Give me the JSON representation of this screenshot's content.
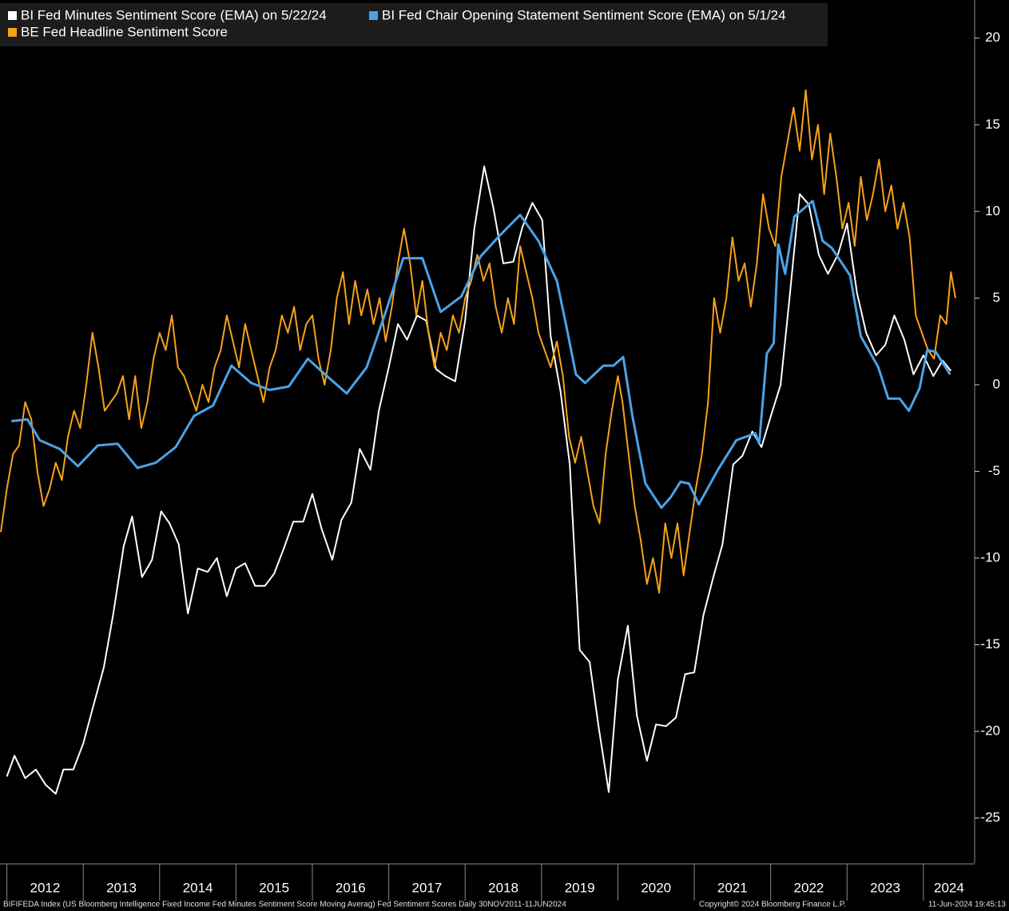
{
  "chart_data": {
    "type": "line",
    "source": "BIFIFEDA Index (US Bloomberg Intelligence Fixed Income Fed Minutes Sentiment Score Moving Averag) Fed Sentiment Scores  Daily 30NOV2011-11JUN2024",
    "copyright": "Copyright© 2024 Bloomberg Finance L.P.",
    "timestamp": "11-Jun-2024 19:45:13",
    "xlim": [
      2011.91,
      2024.65
    ],
    "xticks": [
      {
        "value": 2012,
        "label": "2012"
      },
      {
        "value": 2013,
        "label": "2013"
      },
      {
        "value": 2014,
        "label": "2014"
      },
      {
        "value": 2015,
        "label": "2015"
      },
      {
        "value": 2016,
        "label": "2016"
      },
      {
        "value": 2017,
        "label": "2017"
      },
      {
        "value": 2018,
        "label": "2018"
      },
      {
        "value": 2019,
        "label": "2019"
      },
      {
        "value": 2020,
        "label": "2020"
      },
      {
        "value": 2021,
        "label": "2021"
      },
      {
        "value": 2022,
        "label": "2022"
      },
      {
        "value": 2023,
        "label": "2023"
      },
      {
        "value": 2024,
        "label": "2024"
      }
    ],
    "ylim": [
      -27.6,
      22.2
    ],
    "yticks": [
      20,
      15,
      10,
      5,
      0,
      -5,
      -10,
      -15,
      -20,
      -25
    ],
    "legend": "top-left",
    "series": [
      {
        "name": "BI Fed Minutes Sentiment Score (EMA) on 5/22/24",
        "color": "#ffffff",
        "x": [
          2012.0,
          2012.1,
          2012.24,
          2012.38,
          2012.51,
          2012.64,
          2012.74,
          2012.87,
          2013.0,
          2013.14,
          2013.27,
          2013.39,
          2013.53,
          2013.64,
          2013.77,
          2013.9,
          2014.02,
          2014.13,
          2014.25,
          2014.37,
          2014.5,
          2014.63,
          2014.75,
          2014.88,
          2015.0,
          2015.12,
          2015.25,
          2015.38,
          2015.5,
          2015.63,
          2015.75,
          2015.88,
          2016.0,
          2016.12,
          2016.26,
          2016.38,
          2016.51,
          2016.62,
          2016.76,
          2016.87,
          2017.0,
          2017.12,
          2017.24,
          2017.37,
          2017.49,
          2017.62,
          2017.74,
          2017.87,
          2018.0,
          2018.12,
          2018.25,
          2018.37,
          2018.5,
          2018.63,
          2018.75,
          2018.88,
          2019.01,
          2019.12,
          2019.25,
          2019.37,
          2019.5,
          2019.63,
          2019.75,
          2019.88,
          2020.0,
          2020.13,
          2020.25,
          2020.38,
          2020.5,
          2020.63,
          2020.76,
          2020.88,
          2021.0,
          2021.12,
          2021.25,
          2021.37,
          2021.51,
          2021.63,
          2021.76,
          2021.88,
          2022.01,
          2022.13,
          2022.25,
          2022.38,
          2022.5,
          2022.63,
          2022.75,
          2022.88,
          2023.0,
          2023.13,
          2023.25,
          2023.38,
          2023.5,
          2023.62,
          2023.75,
          2023.87,
          2024.0,
          2024.13,
          2024.25,
          2024.36
        ],
        "values": [
          -22.6,
          -21.4,
          -22.7,
          -22.2,
          -23.1,
          -23.6,
          -22.2,
          -22.2,
          -20.7,
          -18.4,
          -16.3,
          -13.3,
          -9.3,
          -7.6,
          -11.1,
          -10.1,
          -7.3,
          -8.0,
          -9.2,
          -13.2,
          -10.6,
          -10.8,
          -10.0,
          -12.2,
          -10.6,
          -10.3,
          -11.6,
          -11.6,
          -10.9,
          -9.4,
          -7.9,
          -7.9,
          -6.3,
          -8.3,
          -10.1,
          -7.8,
          -6.8,
          -3.7,
          -4.9,
          -1.5,
          1.0,
          3.5,
          2.6,
          4.0,
          3.7,
          0.9,
          0.5,
          0.2,
          3.7,
          9.0,
          12.6,
          10.2,
          7.0,
          7.1,
          9.1,
          10.5,
          9.5,
          2.8,
          -0.4,
          -4.6,
          -15.3,
          -16.0,
          -19.8,
          -23.5,
          -17.0,
          -13.9,
          -19.1,
          -21.7,
          -19.6,
          -19.7,
          -19.2,
          -16.7,
          -16.6,
          -13.3,
          -11.1,
          -9.2,
          -4.6,
          -4.1,
          -2.7,
          -3.6,
          -1.7,
          0.0,
          5.1,
          11.0,
          10.4,
          7.5,
          6.4,
          7.5,
          9.3,
          5.3,
          3.0,
          1.7,
          2.3,
          4.0,
          2.6,
          0.6,
          1.7,
          0.5,
          1.4,
          0.8
        ]
      },
      {
        "name": "BI Fed Chair Opening Statement Sentiment Score (EMA) on 5/1/24",
        "color": "#4aa3e8",
        "x": [
          2012.06,
          2012.27,
          2012.43,
          2012.69,
          2012.93,
          2013.19,
          2013.45,
          2013.71,
          2013.95,
          2014.21,
          2014.45,
          2014.7,
          2014.94,
          2015.2,
          2015.44,
          2015.69,
          2015.94,
          2016.19,
          2016.45,
          2016.71,
          2016.96,
          2017.19,
          2017.44,
          2017.68,
          2017.95,
          2018.2,
          2018.45,
          2018.72,
          2018.96,
          2019.2,
          2019.32,
          2019.45,
          2019.57,
          2019.81,
          2019.94,
          2020.07,
          2020.19,
          2020.36,
          2020.57,
          2020.69,
          2020.82,
          2020.93,
          2021.06,
          2021.31,
          2021.55,
          2021.8,
          2021.85,
          2021.95,
          2022.04,
          2022.1,
          2022.19,
          2022.31,
          2022.55,
          2022.68,
          2022.8,
          2023.04,
          2023.18,
          2023.41,
          2023.54,
          2023.69,
          2023.81,
          2023.95,
          2024.05,
          2024.16,
          2024.35
        ],
        "values": [
          -2.1,
          -2.0,
          -3.2,
          -3.7,
          -4.7,
          -3.5,
          -3.4,
          -4.8,
          -4.5,
          -3.6,
          -1.8,
          -1.2,
          1.1,
          0.1,
          -0.3,
          -0.1,
          1.5,
          0.5,
          -0.5,
          1.0,
          4.2,
          7.3,
          7.3,
          4.2,
          5.1,
          7.4,
          8.6,
          9.8,
          8.3,
          6.0,
          3.5,
          0.6,
          0.1,
          1.1,
          1.1,
          1.6,
          -1.8,
          -5.7,
          -7.1,
          -6.5,
          -5.6,
          -5.7,
          -6.9,
          -4.9,
          -3.2,
          -2.8,
          -3.4,
          1.8,
          2.4,
          8.1,
          6.4,
          9.7,
          10.6,
          8.3,
          7.9,
          6.3,
          2.8,
          1.0,
          -0.8,
          -0.8,
          -1.5,
          -0.2,
          2.0,
          1.9,
          0.6
        ]
      },
      {
        "name": "BE Fed Headline Sentiment Score",
        "color": "#f7a21b",
        "x": [
          2011.92,
          2012.0,
          2012.08,
          2012.16,
          2012.24,
          2012.32,
          2012.4,
          2012.48,
          2012.56,
          2012.64,
          2012.72,
          2012.8,
          2012.88,
          2012.96,
          2013.04,
          2013.12,
          2013.2,
          2013.28,
          2013.36,
          2013.44,
          2013.52,
          2013.6,
          2013.68,
          2013.76,
          2013.84,
          2013.92,
          2014.0,
          2014.08,
          2014.16,
          2014.24,
          2014.32,
          2014.4,
          2014.48,
          2014.56,
          2014.64,
          2014.72,
          2014.8,
          2014.88,
          2014.96,
          2015.04,
          2015.12,
          2015.2,
          2015.28,
          2015.36,
          2015.44,
          2015.52,
          2015.6,
          2015.68,
          2015.76,
          2015.84,
          2015.92,
          2016.0,
          2016.08,
          2016.16,
          2016.24,
          2016.32,
          2016.4,
          2016.48,
          2016.56,
          2016.64,
          2016.72,
          2016.8,
          2016.88,
          2016.96,
          2017.04,
          2017.12,
          2017.2,
          2017.28,
          2017.36,
          2017.44,
          2017.52,
          2017.6,
          2017.68,
          2017.76,
          2017.84,
          2017.92,
          2018.0,
          2018.08,
          2018.16,
          2018.24,
          2018.32,
          2018.4,
          2018.48,
          2018.56,
          2018.64,
          2018.72,
          2018.8,
          2018.88,
          2018.96,
          2019.04,
          2019.12,
          2019.2,
          2019.28,
          2019.36,
          2019.44,
          2019.52,
          2019.6,
          2019.68,
          2019.76,
          2019.84,
          2019.92,
          2020.0,
          2020.06,
          2020.14,
          2020.22,
          2020.3,
          2020.38,
          2020.46,
          2020.54,
          2020.62,
          2020.7,
          2020.78,
          2020.86,
          2020.94,
          2021.02,
          2021.1,
          2021.18,
          2021.26,
          2021.34,
          2021.42,
          2021.5,
          2021.58,
          2021.66,
          2021.74,
          2021.82,
          2021.9,
          2021.98,
          2022.06,
          2022.14,
          2022.22,
          2022.3,
          2022.38,
          2022.46,
          2022.54,
          2022.62,
          2022.7,
          2022.78,
          2022.86,
          2022.94,
          2023.02,
          2023.1,
          2023.18,
          2023.26,
          2023.34,
          2023.42,
          2023.5,
          2023.58,
          2023.66,
          2023.74,
          2023.82,
          2023.9,
          2023.98,
          2024.06,
          2024.14,
          2024.22,
          2024.3,
          2024.36,
          2024.42
        ],
        "values": [
          -8.5,
          -6,
          -4,
          -3.5,
          -1,
          -2,
          -5,
          -7,
          -6,
          -4.5,
          -5.5,
          -3,
          -1.5,
          -2.5,
          0,
          3,
          1,
          -1.5,
          -1,
          -0.5,
          0.5,
          -2,
          0.5,
          -2.5,
          -1,
          1.5,
          3,
          2,
          4,
          1,
          0.5,
          -0.5,
          -1.5,
          0,
          -1,
          1,
          2,
          4,
          2.5,
          1,
          3.5,
          2,
          0.5,
          -1,
          1,
          2,
          4,
          3,
          4.5,
          2,
          3.5,
          4,
          1.5,
          0,
          2,
          5,
          6.5,
          3.5,
          6,
          4,
          5.5,
          3.5,
          5,
          2.5,
          4.5,
          7,
          9,
          7,
          4,
          6,
          3,
          1,
          3,
          2,
          4,
          3,
          5,
          6,
          7.5,
          6,
          7,
          4.5,
          3,
          5,
          3.5,
          8,
          6.5,
          5,
          3,
          2,
          1,
          2.5,
          0.5,
          -3,
          -4.5,
          -3,
          -5,
          -7,
          -8,
          -4,
          -1.5,
          0.5,
          -1,
          -4,
          -7,
          -9,
          -11.5,
          -10,
          -12,
          -8,
          -10,
          -8,
          -11,
          -8.5,
          -6,
          -4,
          -1,
          5,
          3,
          5,
          8.5,
          6,
          7,
          4.5,
          7,
          11,
          9,
          8,
          12,
          14,
          16,
          13.5,
          17,
          13,
          15,
          11,
          14.5,
          12,
          9,
          10.5,
          8,
          12,
          9.5,
          11,
          13,
          10,
          11.5,
          9,
          10.5,
          8.5,
          4,
          3,
          2,
          1.5,
          4,
          3.5,
          6.5,
          5
        ]
      }
    ]
  }
}
